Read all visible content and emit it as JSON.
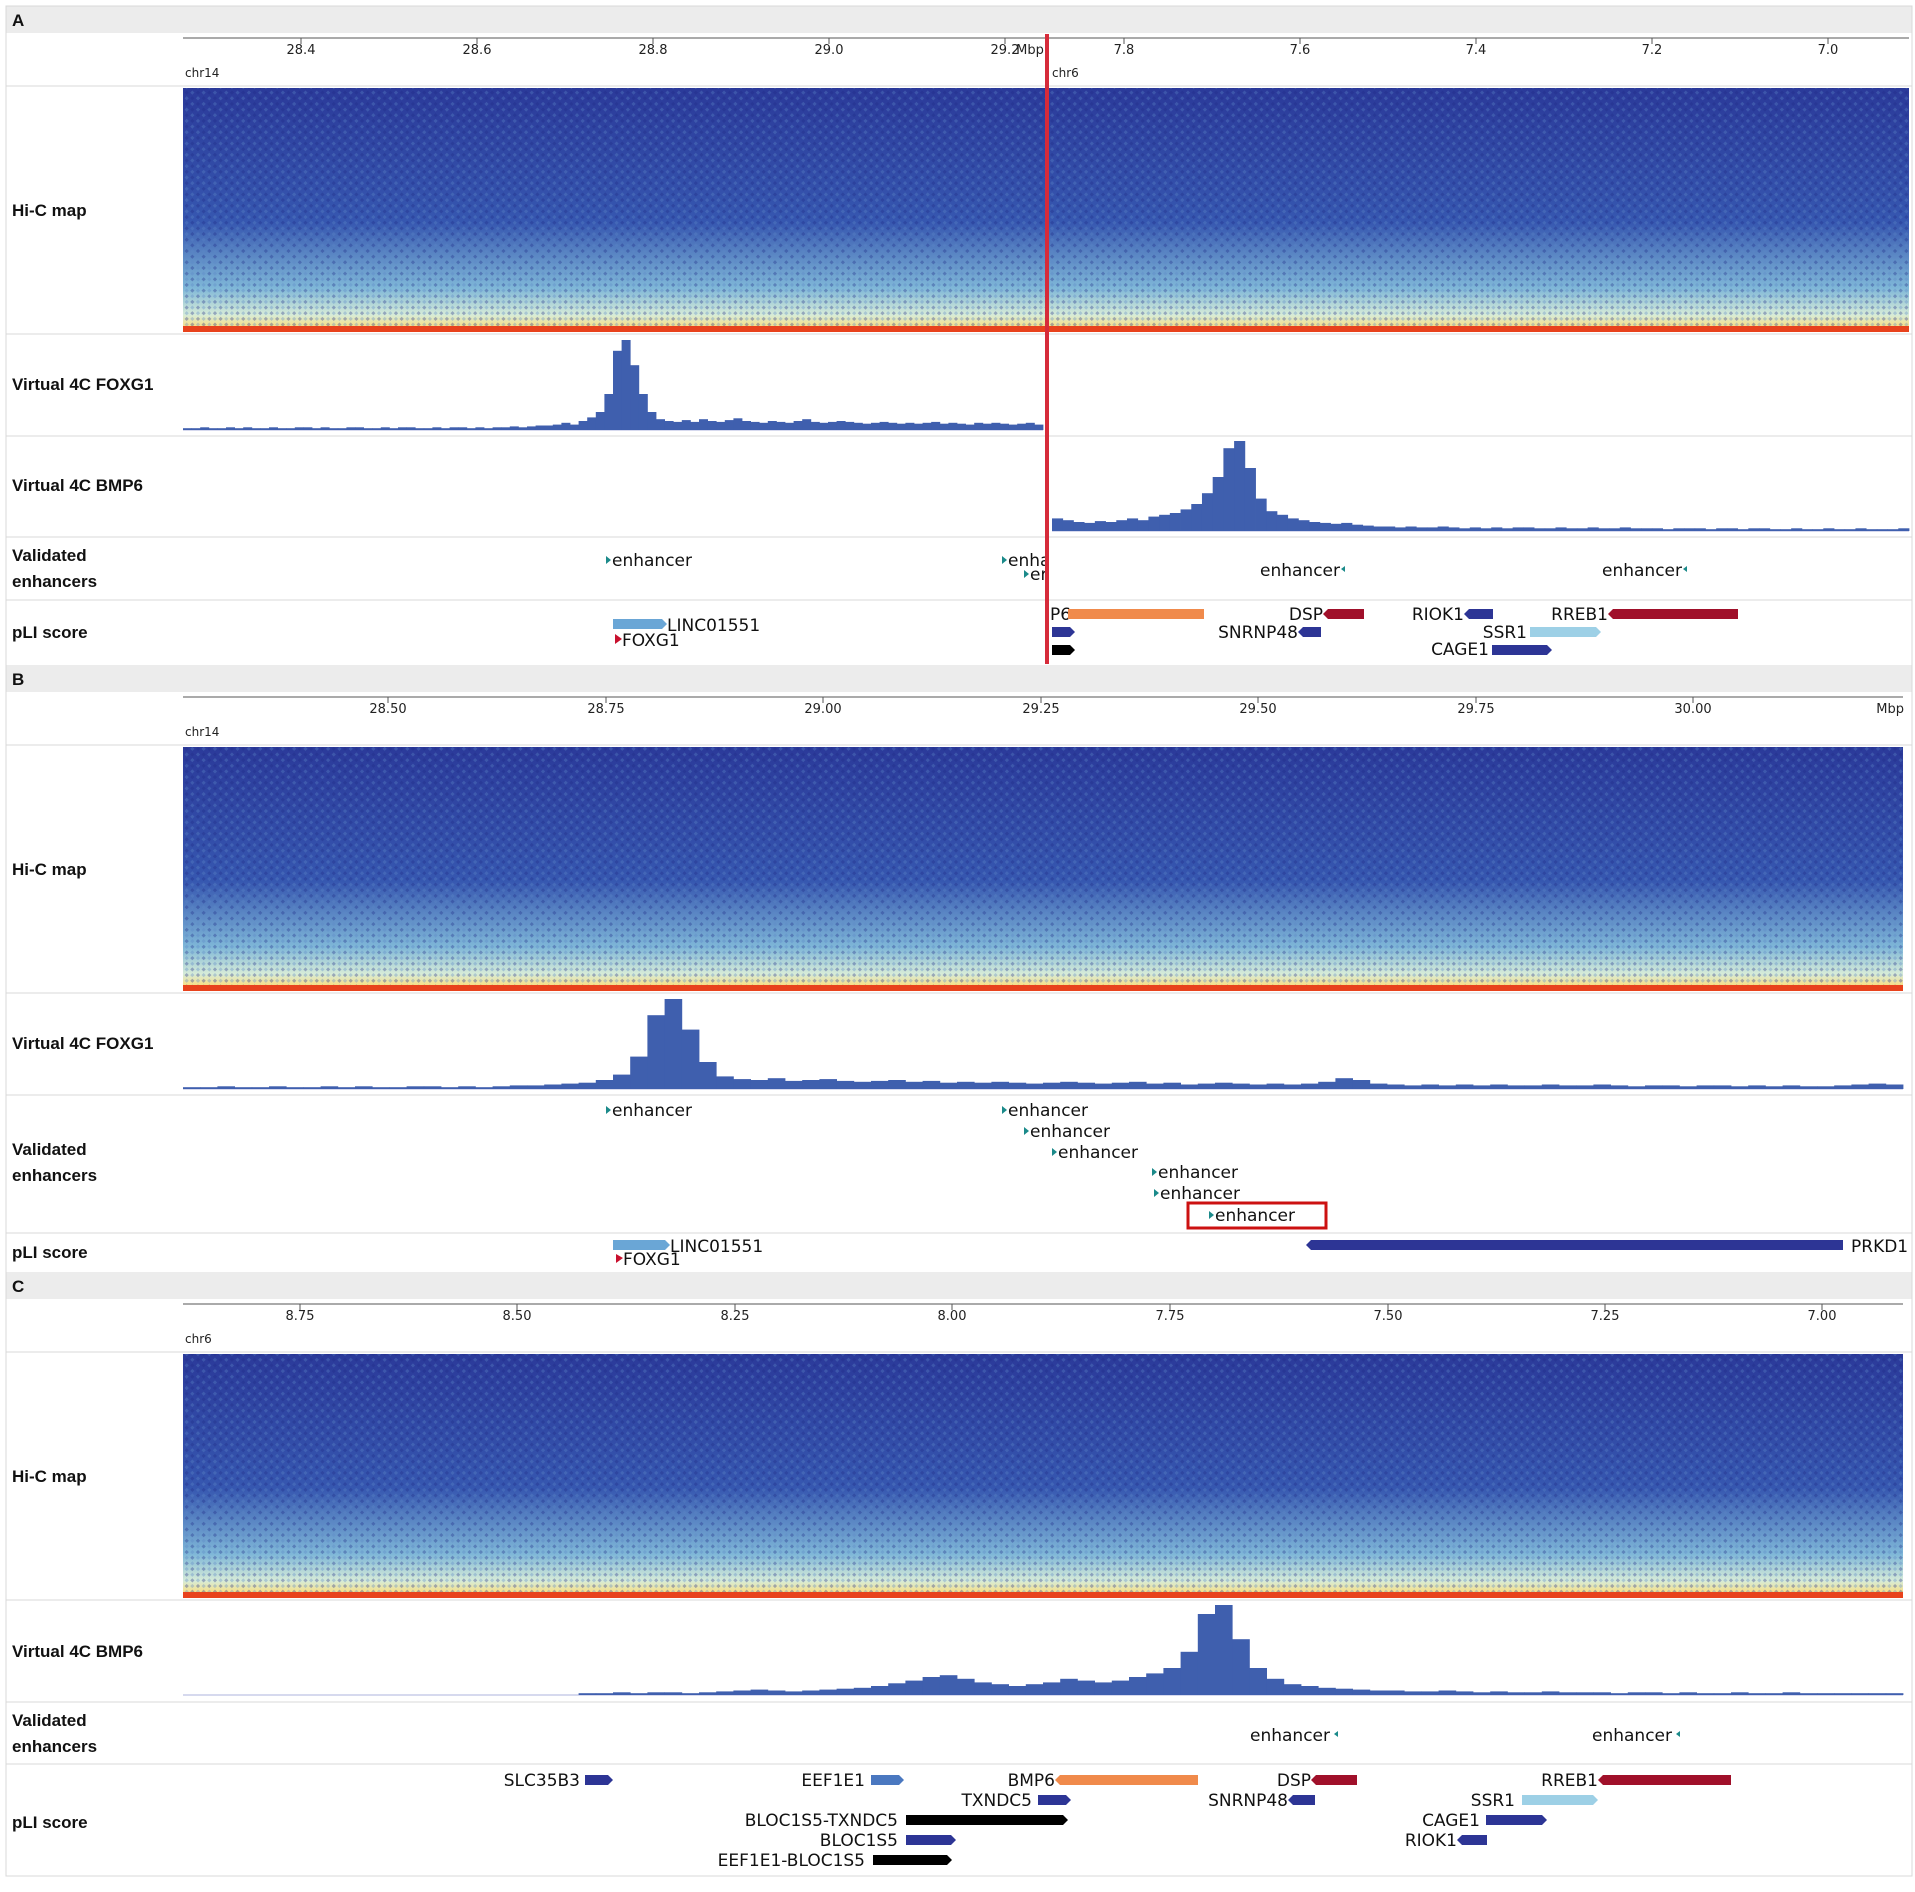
{
  "colors": {
    "contact_low": "#2b3a9a",
    "contact_mid": "#8fc7df",
    "contact_high": "#f6e08a",
    "contact_diag": "#e8421c",
    "virtual4c": "#3f5fae",
    "enhancer_marker": "#1b8a8a",
    "highlight_box": "#cc1111",
    "breakpoint_line": "#d62b3a",
    "gene_navy": "#2d3595",
    "gene_lightblue": "#6aa6d6",
    "gene_paleblue": "#9dd0e6",
    "gene_red": "#a0102a",
    "gene_orange": "#f08a4b",
    "gene_black": "#000000",
    "gene_medblue": "#4a78c0"
  },
  "panels": [
    {
      "letter": "A",
      "axis_unit": "Mbp",
      "axes": [
        {
          "chrom": "chr14",
          "ticks": [
            "28.4",
            "28.6",
            "28.8",
            "29.0",
            "29.2"
          ]
        },
        {
          "chrom": "chr6",
          "ticks": [
            "7.8",
            "7.6",
            "7.4",
            "7.2",
            "7.0"
          ]
        }
      ],
      "tracks": {
        "hic": "Hi-C map",
        "v4c_foxg1": "Virtual 4C FOXG1",
        "v4c_bmp6": "Virtual 4C BMP6",
        "enhancers": [
          "Validated",
          "enhancers"
        ],
        "pli": "pLI score"
      },
      "enhancers": [
        "enhancer",
        "enha",
        "er",
        "enhancer",
        "enhancer"
      ],
      "genes": [
        "LINC01551",
        "FOXG1",
        "P6",
        "DSP",
        "SNRNP48",
        "RIOK1",
        "SSR1",
        "CAGE1",
        "RREB1"
      ]
    },
    {
      "letter": "B",
      "axis_unit": "Mbp",
      "axes": [
        {
          "chrom": "chr14",
          "ticks": [
            "28.50",
            "28.75",
            "29.00",
            "29.25",
            "29.50",
            "29.75",
            "30.00"
          ]
        }
      ],
      "tracks": {
        "hic": "Hi-C map",
        "v4c_foxg1": "Virtual 4C FOXG1",
        "enhancers": [
          "Validated",
          "enhancers"
        ],
        "pli": "pLI score"
      },
      "enhancers": [
        "enhancer",
        "enhancer",
        "enhancer",
        "enhancer",
        "enhancer",
        "enhancer",
        "enhancer"
      ],
      "genes": [
        "LINC01551",
        "FOXG1",
        "PRKD1"
      ]
    },
    {
      "letter": "C",
      "axis_unit": "",
      "axes": [
        {
          "chrom": "chr6",
          "ticks": [
            "8.75",
            "8.50",
            "8.25",
            "8.00",
            "7.75",
            "7.50",
            "7.25",
            "7.00"
          ]
        }
      ],
      "tracks": {
        "hic": "Hi-C map",
        "v4c_bmp6": "Virtual 4C BMP6",
        "enhancers": [
          "Validated",
          "enhancers"
        ],
        "pli": "pLI score"
      },
      "enhancers": [
        "enhancer",
        "enhancer"
      ],
      "genes": [
        "SLC35B3",
        "EEF1E1",
        "BMP6",
        "DSP",
        "RREB1",
        "TXNDC5",
        "SNRNP48",
        "SSR1",
        "BLOC1S5-TXNDC5",
        "CAGE1",
        "BLOC1S5",
        "RIOK1",
        "EEF1E1-BLOC1S5"
      ]
    }
  ],
  "profiles": {
    "foxg1_A": [
      0.02,
      0.02,
      0.03,
      0.02,
      0.02,
      0.03,
      0.02,
      0.03,
      0.02,
      0.02,
      0.03,
      0.02,
      0.02,
      0.03,
      0.03,
      0.02,
      0.03,
      0.02,
      0.02,
      0.03,
      0.03,
      0.02,
      0.02,
      0.03,
      0.02,
      0.03,
      0.03,
      0.02,
      0.02,
      0.03,
      0.02,
      0.03,
      0.03,
      0.02,
      0.03,
      0.02,
      0.03,
      0.03,
      0.04,
      0.03,
      0.04,
      0.05,
      0.05,
      0.06,
      0.08,
      0.06,
      0.1,
      0.14,
      0.2,
      0.4,
      0.88,
      1.0,
      0.72,
      0.4,
      0.2,
      0.12,
      0.1,
      0.09,
      0.11,
      0.09,
      0.12,
      0.1,
      0.09,
      0.11,
      0.13,
      0.1,
      0.09,
      0.08,
      0.1,
      0.09,
      0.08,
      0.1,
      0.12,
      0.09,
      0.08,
      0.09,
      0.1,
      0.09,
      0.08,
      0.07,
      0.08,
      0.09,
      0.08,
      0.07,
      0.08,
      0.07,
      0.08,
      0.09,
      0.07,
      0.08,
      0.07,
      0.06,
      0.08,
      0.07,
      0.08,
      0.07,
      0.06,
      0.07,
      0.08,
      0.06
    ],
    "bmp6_A": [
      0.14,
      0.12,
      0.1,
      0.09,
      0.11,
      0.1,
      0.12,
      0.14,
      0.12,
      0.16,
      0.18,
      0.2,
      0.24,
      0.3,
      0.42,
      0.6,
      0.92,
      1.0,
      0.7,
      0.36,
      0.22,
      0.18,
      0.14,
      0.12,
      0.1,
      0.09,
      0.08,
      0.09,
      0.07,
      0.06,
      0.05,
      0.05,
      0.04,
      0.05,
      0.04,
      0.04,
      0.05,
      0.04,
      0.03,
      0.04,
      0.03,
      0.04,
      0.03,
      0.04,
      0.04,
      0.03,
      0.03,
      0.04,
      0.03,
      0.03,
      0.04,
      0.03,
      0.03,
      0.04,
      0.03,
      0.03,
      0.03,
      0.02,
      0.03,
      0.03,
      0.03,
      0.02,
      0.03,
      0.03,
      0.02,
      0.03,
      0.03,
      0.02,
      0.02,
      0.03,
      0.02,
      0.02,
      0.03,
      0.02,
      0.02,
      0.03,
      0.02,
      0.02,
      0.02,
      0.03
    ],
    "foxg1_B": [
      0.02,
      0.02,
      0.03,
      0.02,
      0.02,
      0.03,
      0.02,
      0.02,
      0.03,
      0.02,
      0.03,
      0.02,
      0.02,
      0.03,
      0.03,
      0.02,
      0.03,
      0.02,
      0.03,
      0.04,
      0.04,
      0.05,
      0.06,
      0.07,
      0.1,
      0.16,
      0.36,
      0.82,
      1.0,
      0.66,
      0.3,
      0.14,
      0.11,
      0.1,
      0.12,
      0.09,
      0.1,
      0.11,
      0.09,
      0.08,
      0.09,
      0.1,
      0.08,
      0.09,
      0.07,
      0.08,
      0.07,
      0.08,
      0.07,
      0.06,
      0.07,
      0.08,
      0.07,
      0.06,
      0.07,
      0.08,
      0.06,
      0.07,
      0.05,
      0.06,
      0.07,
      0.06,
      0.05,
      0.06,
      0.05,
      0.06,
      0.08,
      0.12,
      0.1,
      0.06,
      0.05,
      0.04,
      0.05,
      0.04,
      0.05,
      0.04,
      0.05,
      0.04,
      0.04,
      0.05,
      0.04,
      0.04,
      0.05,
      0.04,
      0.03,
      0.04,
      0.04,
      0.03,
      0.04,
      0.04,
      0.03,
      0.04,
      0.03,
      0.04,
      0.03,
      0.03,
      0.04,
      0.05,
      0.06,
      0.05
    ],
    "bmp6_C": [
      0.0,
      0.0,
      0.0,
      0.0,
      0.0,
      0.0,
      0.0,
      0.0,
      0.0,
      0.0,
      0.0,
      0.0,
      0.0,
      0.0,
      0.0,
      0.0,
      0.0,
      0.0,
      0.0,
      0.0,
      0.0,
      0.0,
      0.0,
      0.02,
      0.02,
      0.03,
      0.02,
      0.03,
      0.03,
      0.02,
      0.03,
      0.04,
      0.05,
      0.06,
      0.05,
      0.04,
      0.05,
      0.06,
      0.07,
      0.08,
      0.1,
      0.13,
      0.16,
      0.2,
      0.22,
      0.18,
      0.14,
      0.12,
      0.1,
      0.12,
      0.14,
      0.18,
      0.16,
      0.14,
      0.16,
      0.2,
      0.24,
      0.3,
      0.48,
      0.9,
      1.0,
      0.62,
      0.3,
      0.18,
      0.12,
      0.1,
      0.08,
      0.07,
      0.06,
      0.05,
      0.05,
      0.04,
      0.04,
      0.05,
      0.04,
      0.03,
      0.04,
      0.03,
      0.03,
      0.04,
      0.03,
      0.03,
      0.03,
      0.02,
      0.03,
      0.03,
      0.02,
      0.03,
      0.02,
      0.02,
      0.03,
      0.02,
      0.02,
      0.03,
      0.02,
      0.02,
      0.02,
      0.02,
      0.02,
      0.02
    ]
  }
}
